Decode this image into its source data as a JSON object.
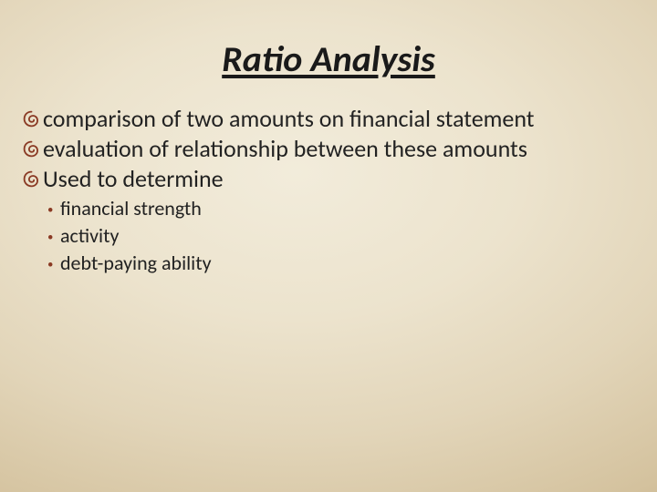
{
  "slide": {
    "title": "Ratio Analysis",
    "title_fontsize": 40,
    "title_color": "#1a1a1a",
    "body_fontsize_lvl1": 26,
    "body_fontsize_lvl2": 22,
    "bullet_color_lvl1": "#8a3a24",
    "bullet_color_lvl2": "#8a3a24",
    "bullet_glyph_lvl1": "་",
    "bullet_glyph_lvl2": "·",
    "background_gradient_stops": [
      "#f2ecdb",
      "#ece3cd",
      "#e2d5b9",
      "#d4c29e",
      "#bfa77e",
      "#a68a60"
    ],
    "items": [
      {
        "text": "comparison of two amounts on  financial statement"
      },
      {
        "text": "evaluation of relationship between these amounts"
      },
      {
        "text": "Used to determine",
        "children": [
          {
            "text": "financial strength"
          },
          {
            "text": "activity"
          },
          {
            "text": "debt-paying ability"
          }
        ]
      }
    ]
  }
}
